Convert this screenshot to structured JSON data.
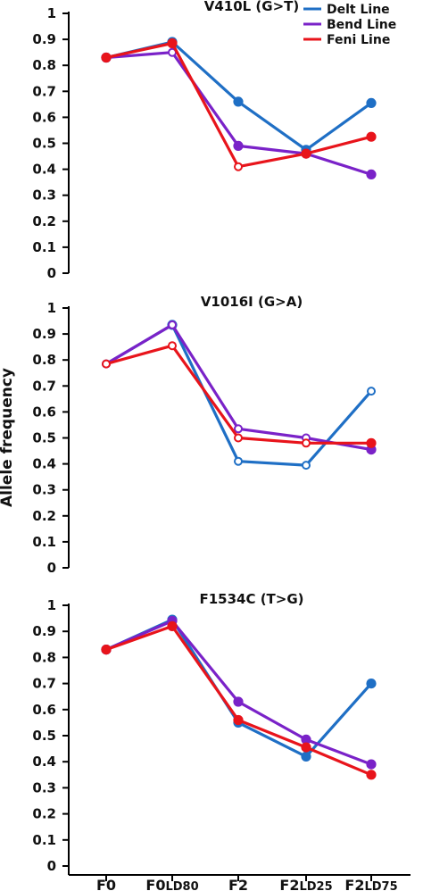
{
  "figure": {
    "ylabel": "Allele frequency",
    "x_categories": [
      {
        "main": "F0",
        "sub": ""
      },
      {
        "main": "F0",
        "sub": "LD80"
      },
      {
        "main": "F2",
        "sub": ""
      },
      {
        "main": "F2",
        "sub": "LD25"
      },
      {
        "main": "F2",
        "sub": "LD75"
      }
    ],
    "y_ticks": [
      "0",
      "0.1",
      "0.2",
      "0.3",
      "0.4",
      "0.5",
      "0.6",
      "0.7",
      "0.8",
      "0.9",
      "1"
    ],
    "legend": {
      "placement": "top-right",
      "entries": [
        {
          "label": "Delt Line",
          "color": "#1f6fc5"
        },
        {
          "label": "Bend Line",
          "color": "#7a22c8"
        },
        {
          "label": "Feni Line",
          "color": "#e8141b"
        }
      ]
    },
    "colors": {
      "delt": "#1f6fc5",
      "bend": "#7a22c8",
      "feni": "#e8141b",
      "axis": "#000000"
    }
  },
  "chart_data": [
    {
      "type": "line",
      "title": "V410L (G>T)",
      "categories": [
        "F0",
        "F0LD80",
        "F2",
        "F2LD25",
        "F2LD75"
      ],
      "ylim": [
        0,
        1
      ],
      "grid": false,
      "series": [
        {
          "name": "Delt Line",
          "values": [
            0.83,
            0.89,
            0.66,
            0.475,
            0.655
          ],
          "filled": [
            true,
            true,
            true,
            true,
            true
          ]
        },
        {
          "name": "Bend Line",
          "values": [
            0.83,
            0.85,
            0.49,
            0.46,
            0.38
          ],
          "filled": [
            true,
            false,
            true,
            true,
            true
          ]
        },
        {
          "name": "Feni Line",
          "values": [
            0.83,
            0.885,
            0.41,
            0.46,
            0.525
          ],
          "filled": [
            true,
            true,
            false,
            true,
            true
          ]
        }
      ]
    },
    {
      "type": "line",
      "title": "V1016I (G>A)",
      "categories": [
        "F0",
        "F0LD80",
        "F2",
        "F2LD25",
        "F2LD75"
      ],
      "ylim": [
        0,
        1
      ],
      "grid": false,
      "series": [
        {
          "name": "Delt Line",
          "values": [
            0.785,
            0.935,
            0.41,
            0.395,
            0.68
          ],
          "filled": [
            false,
            true,
            false,
            false,
            false
          ]
        },
        {
          "name": "Bend Line",
          "values": [
            0.785,
            0.935,
            0.535,
            0.5,
            0.455
          ],
          "filled": [
            false,
            false,
            false,
            false,
            true
          ]
        },
        {
          "name": "Feni Line",
          "values": [
            0.785,
            0.855,
            0.5,
            0.48,
            0.48
          ],
          "filled": [
            false,
            false,
            false,
            false,
            true
          ]
        }
      ]
    },
    {
      "type": "line",
      "title": "F1534C (T>G)",
      "categories": [
        "F0",
        "F0LD80",
        "F2",
        "F2LD25",
        "F2LD75"
      ],
      "ylim": [
        0,
        1
      ],
      "grid": false,
      "series": [
        {
          "name": "Delt Line",
          "values": [
            0.83,
            0.945,
            0.55,
            0.42,
            0.7
          ],
          "filled": [
            true,
            true,
            true,
            true,
            true
          ]
        },
        {
          "name": "Bend Line",
          "values": [
            0.83,
            0.94,
            0.63,
            0.485,
            0.39
          ],
          "filled": [
            true,
            true,
            true,
            true,
            true
          ]
        },
        {
          "name": "Feni Line",
          "values": [
            0.83,
            0.92,
            0.56,
            0.455,
            0.35
          ],
          "filled": [
            true,
            true,
            true,
            true,
            true
          ]
        }
      ]
    }
  ]
}
